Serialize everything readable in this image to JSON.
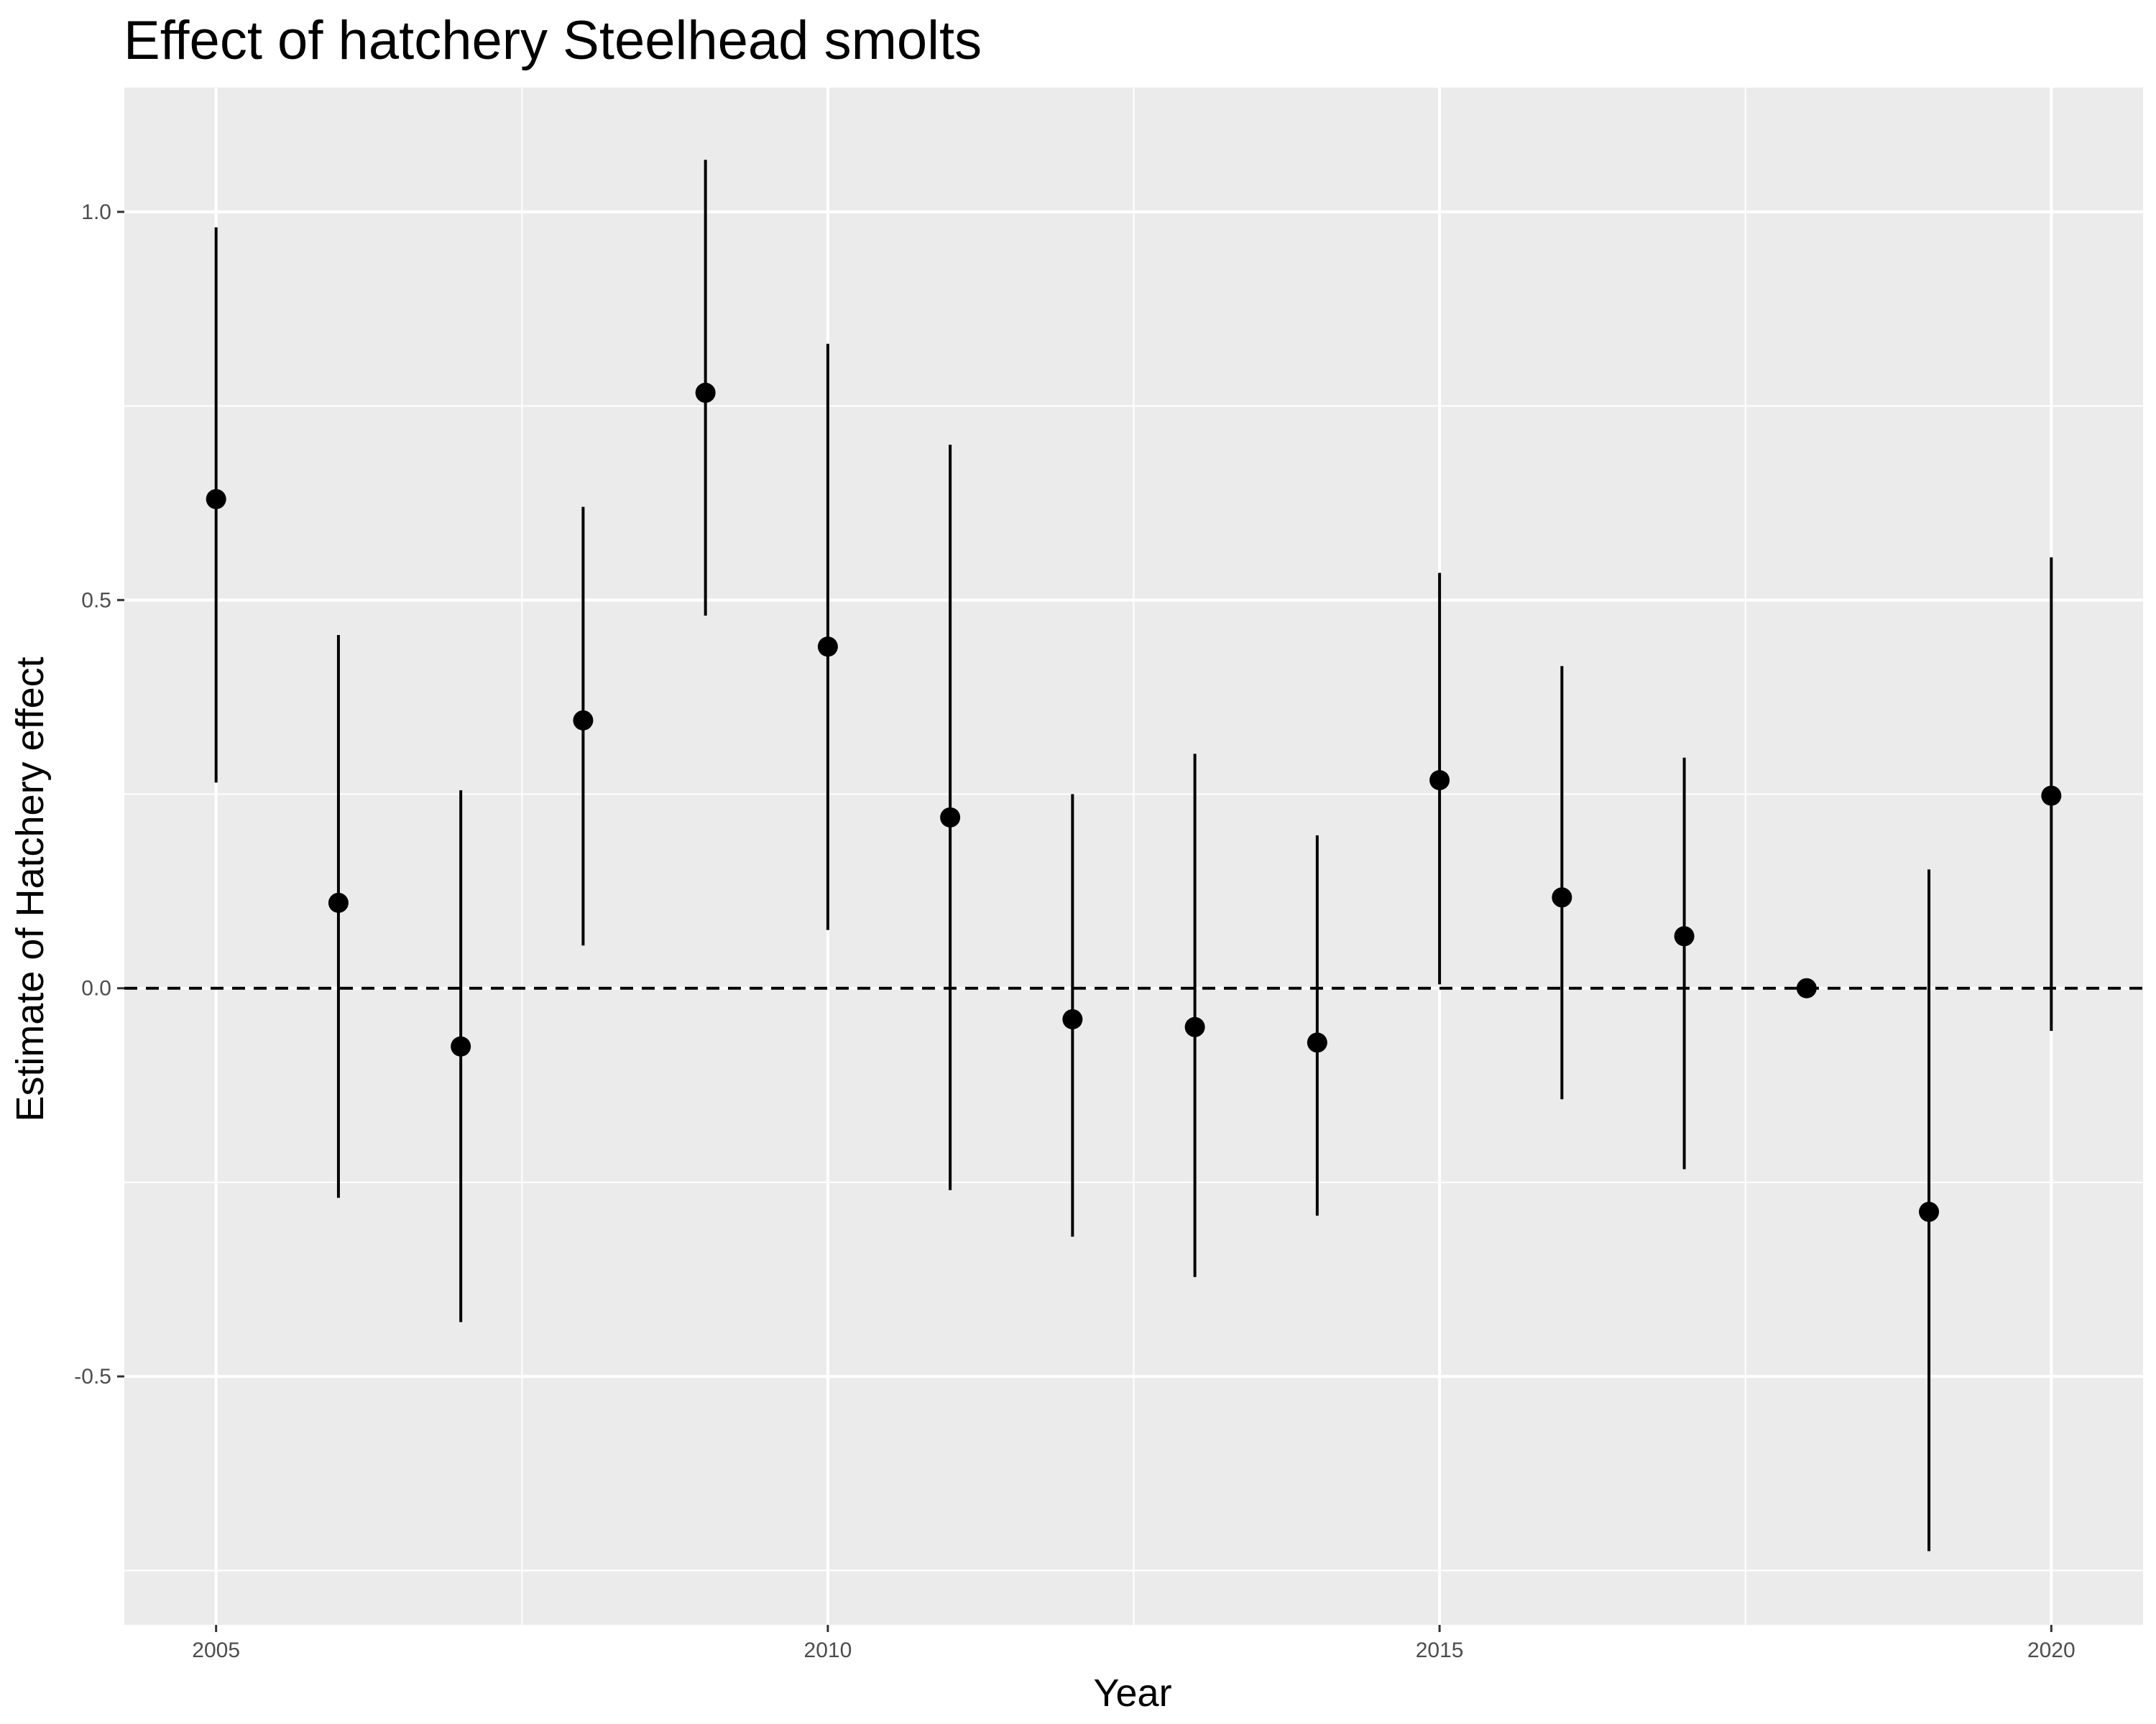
{
  "chart_data": {
    "type": "scatter",
    "title": "Effect of hatchery Steelhead smolts",
    "xlabel": "Year",
    "ylabel": "Estimate of Hatchery effect",
    "xlim": [
      2004.25,
      2020.75
    ],
    "ylim": [
      -0.82,
      1.16
    ],
    "x_ticks": [
      2005,
      2010,
      2015,
      2020
    ],
    "x_tick_labels": [
      "2005",
      "2010",
      "2015",
      "2020"
    ],
    "y_ticks": [
      -0.5,
      0.0,
      0.5,
      1.0
    ],
    "y_tick_labels": [
      "-0.5",
      "0.0",
      "0.5",
      "1.0"
    ],
    "reference_line": {
      "y": 0.0,
      "style": "dashed"
    },
    "grid": true,
    "points": [
      {
        "x": 2005,
        "y": 0.63,
        "lower": 0.265,
        "upper": 0.98
      },
      {
        "x": 2006,
        "y": 0.11,
        "lower": -0.27,
        "upper": 0.455
      },
      {
        "x": 2007,
        "y": -0.075,
        "lower": -0.43,
        "upper": 0.255
      },
      {
        "x": 2008,
        "y": 0.345,
        "lower": 0.055,
        "upper": 0.62
      },
      {
        "x": 2009,
        "y": 0.767,
        "lower": 0.48,
        "upper": 1.067
      },
      {
        "x": 2010,
        "y": 0.44,
        "lower": 0.075,
        "upper": 0.83
      },
      {
        "x": 2011,
        "y": 0.22,
        "lower": -0.26,
        "upper": 0.7
      },
      {
        "x": 2012,
        "y": -0.04,
        "lower": -0.32,
        "upper": 0.25
      },
      {
        "x": 2013,
        "y": -0.05,
        "lower": -0.372,
        "upper": 0.302
      },
      {
        "x": 2014,
        "y": -0.07,
        "lower": -0.293,
        "upper": 0.197
      },
      {
        "x": 2015,
        "y": 0.268,
        "lower": 0.005,
        "upper": 0.535
      },
      {
        "x": 2016,
        "y": 0.117,
        "lower": -0.143,
        "upper": 0.415
      },
      {
        "x": 2017,
        "y": 0.067,
        "lower": -0.233,
        "upper": 0.297
      },
      {
        "x": 2018,
        "y": 0.0,
        "lower": 0.0,
        "upper": 0.0
      },
      {
        "x": 2019,
        "y": -0.288,
        "lower": -0.725,
        "upper": 0.153
      },
      {
        "x": 2020,
        "y": 0.248,
        "lower": -0.055,
        "upper": 0.555
      }
    ]
  }
}
